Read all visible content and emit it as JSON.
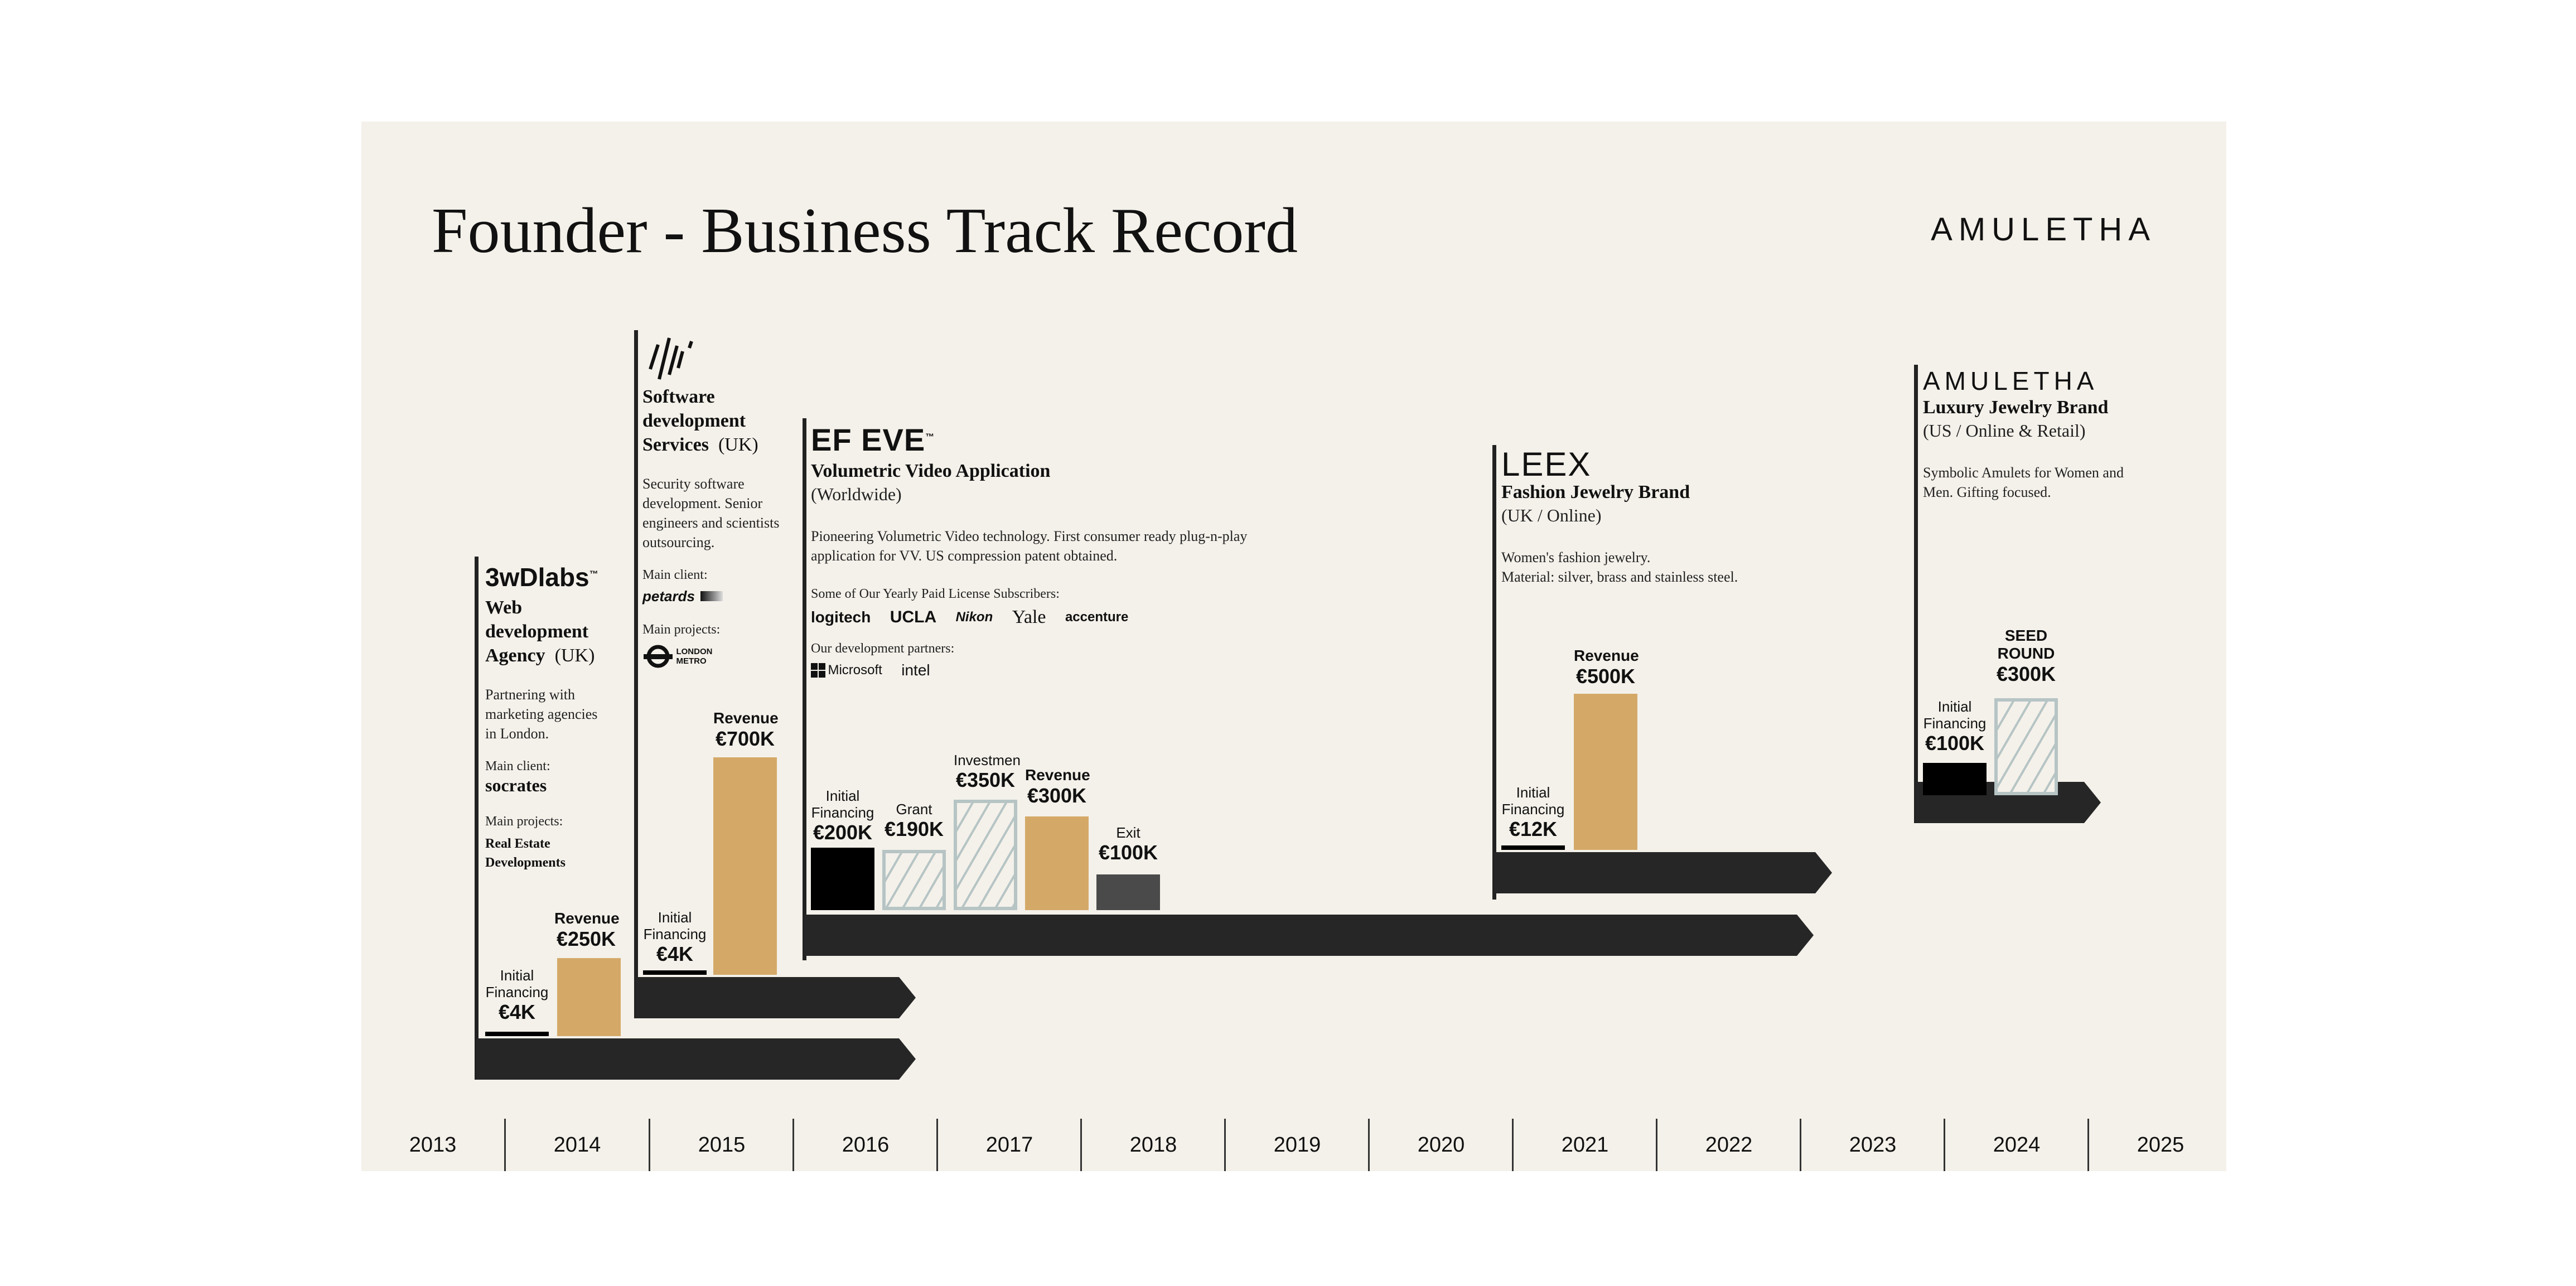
{
  "title": "Founder - Business Track Record",
  "brand": "AMULETHA",
  "years": [
    "2013",
    "2014",
    "2015",
    "2016",
    "2017",
    "2018",
    "2019",
    "2020",
    "2021",
    "2022",
    "2023",
    "2024",
    "2025"
  ],
  "ventures": {
    "threew": {
      "logo": "3wDlabs",
      "tm": "™",
      "name": "Web development Agency",
      "name_l1": "Web",
      "name_l2": "development",
      "name_l3": "Agency",
      "region": "(UK)",
      "desc_l1": "Partnering with",
      "desc_l2": "marketing agencies",
      "desc_l3": "in London.",
      "main_client_label": "Main client:",
      "main_client": "socrates",
      "main_projects_label": "Main projects:",
      "projects_l1": "Real Estate",
      "projects_l2": "Developments",
      "financing_label_l1": "Initial",
      "financing_label_l2": "Financing",
      "financing_value": "€4K",
      "revenue_label": "Revenue",
      "revenue_value": "€250K"
    },
    "software": {
      "name_l1": "Software",
      "name_l2": "development",
      "name_l3": "Services",
      "region": "(UK)",
      "desc_l1": "Security software",
      "desc_l2": "development. Senior",
      "desc_l3": "engineers and scientists",
      "desc_l4": "outsourcing.",
      "main_client_label": "Main client:",
      "main_client": "petards",
      "main_projects_label": "Main projects:",
      "project_l1": "LONDON",
      "project_l2": "METRO",
      "financing_label_l1": "Initial",
      "financing_label_l2": "Financing",
      "financing_value": "€4K",
      "revenue_label": "Revenue",
      "revenue_value": "€700K"
    },
    "efeve": {
      "logo": "EF EVE",
      "tm": "™",
      "name": "Volumetric Video Application",
      "region": "(Worldwide)",
      "desc_l1": "Pioneering Volumetric Video technology. First consumer ready plug-n-play",
      "desc_l2": "application for VV. US compression patent obtained.",
      "subscribers_label": "Some of Our Yearly Paid License Subscribers:",
      "subscribers": [
        "logitech",
        "UCLA",
        "Nikon",
        "Yale",
        "accenture"
      ],
      "partners_label": "Our development partners:",
      "partners": [
        "Microsoft",
        "intel"
      ],
      "financing_label_l1": "Initial",
      "financing_label_l2": "Financing",
      "financing_value": "€200K",
      "grant_label": "Grant",
      "grant_value": "€190K",
      "investment_label": "Investmen",
      "investment_value": "€350K",
      "revenue_label": "Revenue",
      "revenue_value": "€300K",
      "exit_label": "Exit",
      "exit_value": "€100K"
    },
    "leex": {
      "logo": "LEEX",
      "name": "Fashion Jewelry Brand",
      "region": "(UK / Online)",
      "desc_l1": "Women's fashion jewelry.",
      "desc_l2": "Material: silver, brass and stainless steel.",
      "financing_label_l1": "Initial",
      "financing_label_l2": "Financing",
      "financing_value": "€12K",
      "revenue_label": "Revenue",
      "revenue_value": "€500K"
    },
    "amuletha": {
      "logo": "AMULETHA",
      "name": "Luxury Jewelry Brand",
      "region": "(US / Online & Retail)",
      "desc_l1": "Symbolic Amulets for Women and",
      "desc_l2": "Men. Gifting focused.",
      "financing_label_l1": "Initial",
      "financing_label_l2": "Financing",
      "financing_value": "€100K",
      "seed_label_l1": "SEED",
      "seed_label_l2": "ROUND",
      "seed_value": "€300K"
    }
  },
  "colors": {
    "background": "#f4f1ea",
    "revenue": "#d4a968",
    "hatch": "#b6c4c4",
    "arrow": "#262626"
  }
}
